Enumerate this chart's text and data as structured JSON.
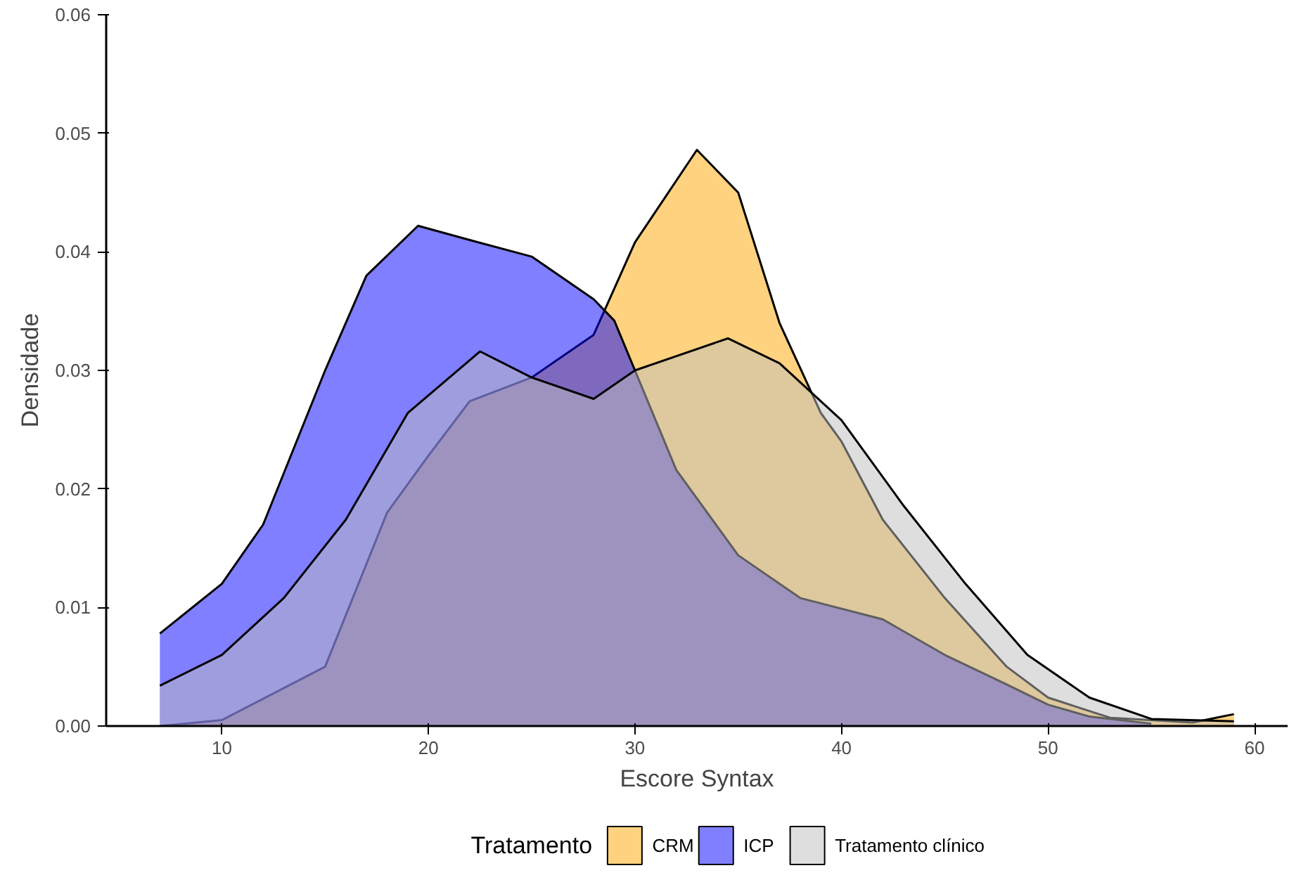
{
  "chart_data": {
    "type": "area",
    "xlabel": "Escore Syntax",
    "ylabel": "Densidade",
    "legend_title": "Tratamento",
    "legend": "bottom",
    "grid": false,
    "xlim": [
      4.4,
      61.6
    ],
    "ylim": [
      0,
      0.06
    ],
    "xticks": [
      10,
      20,
      30,
      40,
      50,
      60
    ],
    "yticks": [
      {
        "value": 0,
        "label": "0.00"
      },
      {
        "value": 0.01,
        "label": "0.01"
      },
      {
        "value": 0.02,
        "label": "0.02"
      },
      {
        "value": 0.03,
        "label": "0.03"
      },
      {
        "value": 0.04,
        "label": "0.04"
      },
      {
        "value": 0.05,
        "label": "0.05"
      },
      {
        "value": 0.06,
        "label": "0.06"
      }
    ],
    "series": [
      {
        "name": "CRM",
        "color": "#ffa500",
        "x": [
          7,
          10,
          15,
          18,
          20,
          22,
          25,
          28,
          30,
          33,
          35,
          37,
          39,
          40,
          42,
          45,
          48,
          50,
          53,
          57,
          59
        ],
        "values": [
          0.0,
          0.0005,
          0.005,
          0.018,
          0.0228,
          0.0274,
          0.0294,
          0.033,
          0.0408,
          0.0486,
          0.045,
          0.034,
          0.0264,
          0.024,
          0.0174,
          0.0108,
          0.005,
          0.0024,
          0.0007,
          0.0003,
          0.001
        ]
      },
      {
        "name": "ICP",
        "color": "#0000ff",
        "x": [
          7,
          10,
          12,
          15,
          17,
          19.5,
          22,
          25,
          28,
          29,
          32,
          35,
          38,
          42,
          45,
          48,
          50,
          52,
          55
        ],
        "values": [
          0.0078,
          0.012,
          0.017,
          0.03,
          0.038,
          0.0422,
          0.041,
          0.0396,
          0.036,
          0.0342,
          0.0216,
          0.0144,
          0.0108,
          0.009,
          0.006,
          0.0035,
          0.0018,
          0.0008,
          0.0002
        ]
      },
      {
        "name": "Tratamento clínico",
        "color": "#bebebe",
        "x": [
          7,
          10,
          13,
          16,
          19,
          22.5,
          25,
          28,
          30,
          34.5,
          37,
          40,
          43,
          46,
          49,
          52,
          55,
          59
        ],
        "values": [
          0.0034,
          0.006,
          0.0108,
          0.0174,
          0.0264,
          0.0316,
          0.0294,
          0.0276,
          0.03,
          0.0327,
          0.0306,
          0.0258,
          0.0186,
          0.012,
          0.006,
          0.0024,
          0.0006,
          0.0004
        ]
      }
    ]
  }
}
